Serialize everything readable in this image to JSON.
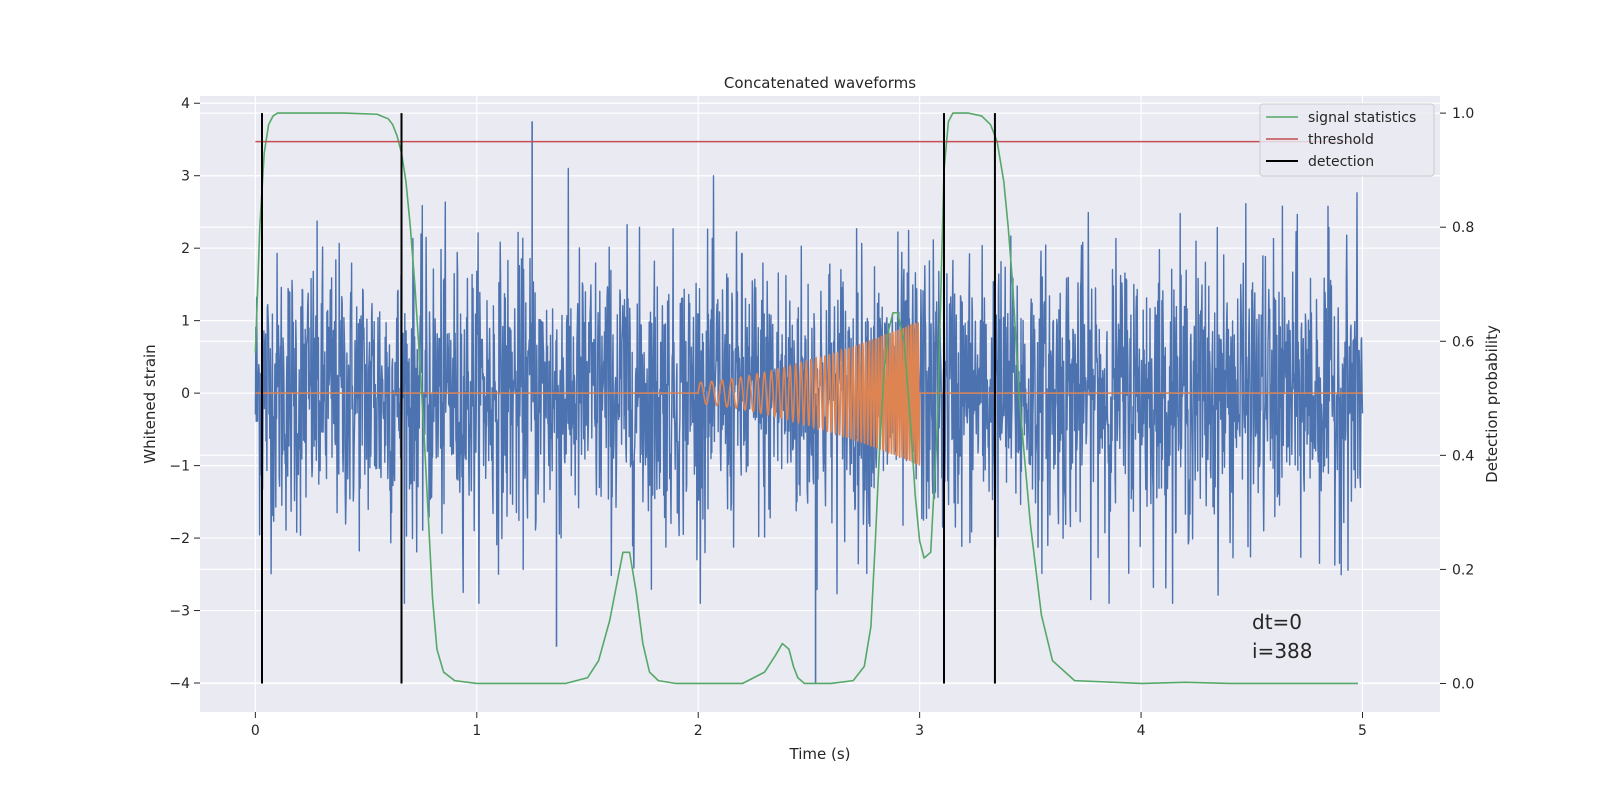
{
  "chart_data": {
    "type": "line",
    "title": "Concatenated waveforms",
    "xlabel": "Time (s)",
    "ylabel": "Whitened strain",
    "y2label": "Detection probability",
    "xlim": [
      -0.25,
      5.35
    ],
    "ylim": [
      -4.4,
      4.1
    ],
    "y2lim": [
      -0.05,
      1.03
    ],
    "xticks": [
      0,
      1,
      2,
      3,
      4,
      5
    ],
    "yticks": [
      -4,
      -3,
      -2,
      -1,
      0,
      1,
      2,
      3,
      4
    ],
    "y2ticks": [
      0.0,
      0.2,
      0.4,
      0.6,
      0.8,
      1.0
    ],
    "xtick_labels": [
      "0",
      "1",
      "2",
      "3",
      "4",
      "5"
    ],
    "ytick_labels": [
      "−4",
      "−3",
      "−2",
      "−1",
      "0",
      "1",
      "2",
      "3",
      "4"
    ],
    "y2tick_labels": [
      "0.0",
      "0.2",
      "0.4",
      "0.6",
      "0.8",
      "1.0"
    ],
    "grid": true,
    "legend_position": "top-right",
    "legend": [
      "signal statistics",
      "threshold",
      "detection"
    ],
    "colors": {
      "strain": "#4c72b0",
      "injection": "#dd8452",
      "signal_statistics": "#55a868",
      "threshold": "#c44e52",
      "detection": "#000000",
      "axes_bg": "#eaeaf2",
      "grid": "#ffffff"
    },
    "series": [
      {
        "name": "signal statistics",
        "axis": "right",
        "x": [
          0.0,
          0.02,
          0.04,
          0.06,
          0.08,
          0.1,
          0.2,
          0.4,
          0.55,
          0.6,
          0.62,
          0.64,
          0.66,
          0.68,
          0.7,
          0.72,
          0.74,
          0.76,
          0.78,
          0.8,
          0.82,
          0.85,
          0.9,
          1.0,
          1.2,
          1.4,
          1.5,
          1.55,
          1.6,
          1.63,
          1.66,
          1.69,
          1.72,
          1.75,
          1.78,
          1.82,
          1.9,
          2.0,
          2.2,
          2.3,
          2.35,
          2.38,
          2.41,
          2.43,
          2.45,
          2.48,
          2.52,
          2.6,
          2.7,
          2.75,
          2.78,
          2.8,
          2.82,
          2.84,
          2.86,
          2.88,
          2.9,
          2.93,
          2.96,
          2.98,
          3.0,
          3.02,
          3.05,
          3.08,
          3.11,
          3.13,
          3.15,
          3.18,
          3.22,
          3.28,
          3.32,
          3.35,
          3.38,
          3.4,
          3.42,
          3.45,
          3.5,
          3.55,
          3.6,
          3.7,
          4.0,
          4.2,
          4.4,
          4.98
        ],
        "values": [
          0.58,
          0.8,
          0.93,
          0.98,
          0.995,
          1.0,
          1.0,
          1.0,
          0.998,
          0.99,
          0.98,
          0.96,
          0.93,
          0.88,
          0.8,
          0.7,
          0.58,
          0.45,
          0.3,
          0.15,
          0.06,
          0.02,
          0.005,
          0.0,
          0.0,
          0.0,
          0.01,
          0.04,
          0.11,
          0.17,
          0.23,
          0.23,
          0.16,
          0.07,
          0.02,
          0.005,
          0.0,
          0.0,
          0.0,
          0.02,
          0.05,
          0.07,
          0.06,
          0.03,
          0.01,
          0.0,
          0.0,
          0.0,
          0.005,
          0.03,
          0.1,
          0.25,
          0.42,
          0.55,
          0.62,
          0.65,
          0.65,
          0.6,
          0.45,
          0.33,
          0.25,
          0.22,
          0.23,
          0.45,
          0.9,
          0.985,
          1.0,
          1.0,
          1.0,
          0.995,
          0.98,
          0.95,
          0.88,
          0.8,
          0.7,
          0.5,
          0.28,
          0.12,
          0.04,
          0.005,
          0.0,
          0.002,
          0.0,
          0.0
        ]
      },
      {
        "name": "threshold",
        "axis": "right",
        "x": [
          0.0,
          5.0
        ],
        "values": [
          0.95,
          0.95
        ]
      }
    ],
    "detections": [
      0.03,
      0.66,
      3.11,
      3.34
    ],
    "injection": {
      "t_start": 2.0,
      "t_end": 3.0,
      "amp_start": 0.15,
      "amp_end": 1.0,
      "f_start": 20,
      "f_end": 95
    },
    "noise": {
      "t_start": 0.0,
      "t_end": 5.0,
      "spikes": [
        {
          "x": 1.25,
          "y": 3.75
        },
        {
          "x": 2.53,
          "y": -4.0
        },
        {
          "x": 1.36,
          "y": -3.5
        }
      ]
    },
    "annotations": [
      "dt=0",
      "i=388"
    ]
  }
}
